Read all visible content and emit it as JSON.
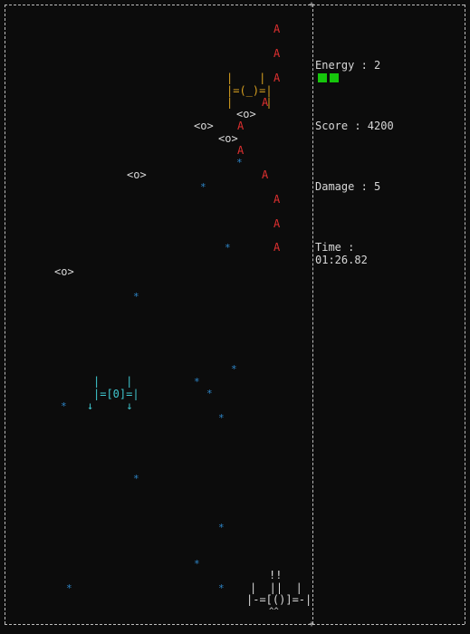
{
  "hud": {
    "energy_label": "Energy : 2",
    "score_label": "Score : 4200",
    "damage_label": "Damage : 5",
    "time_label": "Time :",
    "time_value": "01:26.82",
    "energy_pips": 2,
    "pip_color": "#16c60c"
  },
  "glyphs": {
    "bullet": "A",
    "asteroid": "<o>",
    "star": "*"
  },
  "enemies": {
    "orange_ship": [
      "|    |",
      "|=(_)=|",
      "|     |"
    ],
    "cyan_ship": [
      "|    |",
      "|=[0]=|",
      "↓     ↓"
    ]
  },
  "player_ship": [
    "!!",
    "|  ||  |",
    "|-=[()]=-|",
    "^^"
  ],
  "colors": {
    "background": "#0c0c0c",
    "bullet": "#e03030",
    "star": "#2e86c8",
    "enemy_orange": "#d8a020",
    "enemy_cyan": "#40c8d0",
    "border": "#bdbdbd"
  }
}
